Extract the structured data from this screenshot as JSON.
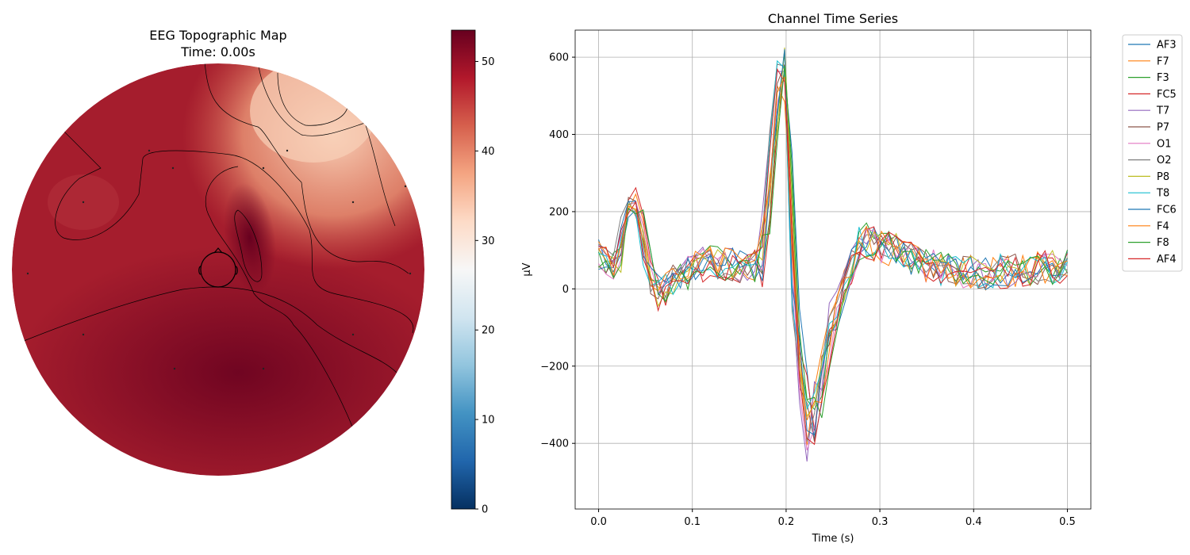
{
  "chart_data": [
    {
      "type": "heatmap",
      "title": "EEG Topographic Map",
      "subtitle": "Time: 0.00s",
      "colormap": "RdBu_r",
      "colorbar": {
        "vmin": 0,
        "vmax": 53.5,
        "ticks": [
          "0",
          "10",
          "20",
          "30",
          "40",
          "50"
        ],
        "tick_values": [
          0,
          10,
          20,
          30,
          40,
          50
        ]
      },
      "colors": {
        "low": "#053061",
        "mid": "#f7f7f7",
        "high": "#67001f"
      }
    },
    {
      "type": "line",
      "title": "Channel Time Series",
      "xlabel": "Time (s)",
      "ylabel": "µV",
      "xlim": [
        -0.025,
        0.525
      ],
      "ylim": [
        -570,
        670
      ],
      "xticks": [
        0.0,
        0.1,
        0.2,
        0.3,
        0.4,
        0.5
      ],
      "xtick_labels": [
        "0.0",
        "0.1",
        "0.2",
        "0.3",
        "0.4",
        "0.5"
      ],
      "yticks": [
        -400,
        -200,
        0,
        200,
        400,
        600
      ],
      "ytick_labels": [
        "−400",
        "−200",
        "0",
        "200",
        "400",
        "600"
      ],
      "grid": true,
      "legend_position": "outside-right",
      "series": [
        {
          "name": "AF3",
          "color": "#1f77b4"
        },
        {
          "name": "F7",
          "color": "#ff7f0e"
        },
        {
          "name": "F3",
          "color": "#2ca02c"
        },
        {
          "name": "FC5",
          "color": "#d62728"
        },
        {
          "name": "T7",
          "color": "#9467bd"
        },
        {
          "name": "P7",
          "color": "#8c564b"
        },
        {
          "name": "O1",
          "color": "#e377c2"
        },
        {
          "name": "O2",
          "color": "#7f7f7f"
        },
        {
          "name": "P8",
          "color": "#bcbd22"
        },
        {
          "name": "T8",
          "color": "#17becf"
        },
        {
          "name": "FC6",
          "color": "#1f77b4"
        },
        {
          "name": "F4",
          "color": "#ff7f0e"
        },
        {
          "name": "F8",
          "color": "#2ca02c"
        },
        {
          "name": "AF4",
          "color": "#d62728"
        }
      ],
      "template": {
        "t": [
          0.0,
          0.02,
          0.03,
          0.04,
          0.06,
          0.08,
          0.1,
          0.12,
          0.15,
          0.175,
          0.19,
          0.2,
          0.21,
          0.22,
          0.225,
          0.24,
          0.26,
          0.28,
          0.3,
          0.32,
          0.35,
          0.4,
          0.45,
          0.5
        ],
        "v": [
          90,
          60,
          200,
          230,
          -20,
          20,
          50,
          70,
          60,
          60,
          500,
          560,
          -100,
          -300,
          -400,
          -200,
          0,
          130,
          110,
          100,
          60,
          40,
          50,
          60
        ]
      }
    }
  ]
}
